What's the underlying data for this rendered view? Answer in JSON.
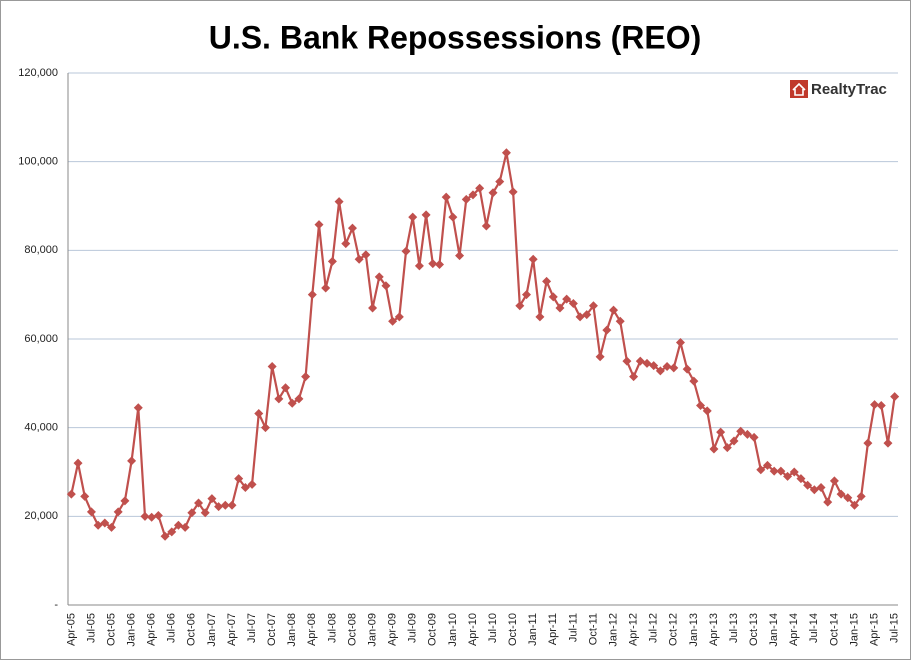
{
  "chart_data": {
    "type": "line",
    "title": "U.S. Bank Repossessions (REO)",
    "logo": "RealtyTrac",
    "categories": [
      "Apr-05",
      null,
      null,
      "Jul-05",
      null,
      null,
      "Oct-05",
      null,
      null,
      "Jan-06",
      null,
      null,
      "Apr-06",
      null,
      null,
      "Jul-06",
      null,
      null,
      "Oct-06",
      null,
      null,
      "Jan-07",
      null,
      null,
      "Apr-07",
      null,
      null,
      "Jul-07",
      null,
      null,
      "Oct-07",
      null,
      null,
      "Jan-08",
      null,
      null,
      "Apr-08",
      null,
      null,
      "Jul-08",
      null,
      null,
      "Oct-08",
      null,
      null,
      "Jan-09",
      null,
      null,
      "Apr-09",
      null,
      null,
      "Jul-09",
      null,
      null,
      "Oct-09",
      null,
      null,
      "Jan-10",
      null,
      null,
      "Apr-10",
      null,
      null,
      "Jul-10",
      null,
      null,
      "Oct-10",
      null,
      null,
      "Jan-11",
      null,
      null,
      "Apr-11",
      null,
      null,
      "Jul-11",
      null,
      null,
      "Oct-11",
      null,
      null,
      "Jan-12",
      null,
      null,
      "Apr-12",
      null,
      null,
      "Jul-12",
      null,
      null,
      "Oct-12",
      null,
      null,
      "Jan-13",
      null,
      null,
      "Apr-13",
      null,
      null,
      "Jul-13",
      null,
      null,
      "Oct-13",
      null,
      null,
      "Jan-14",
      null,
      null,
      "Apr-14",
      null,
      null,
      "Jul-14",
      null,
      null,
      "Oct-14",
      null,
      null,
      "Jan-15",
      null,
      null,
      "Apr-15",
      null,
      null,
      "Jul-15"
    ],
    "series": [
      {
        "name": "REO",
        "color": "#c0504d",
        "values": [
          25000,
          32000,
          24500,
          21000,
          18000,
          18500,
          17500,
          21000,
          23500,
          32500,
          44500,
          20000,
          19800,
          20200,
          15500,
          16500,
          18000,
          17500,
          20800,
          23000,
          20800,
          24000,
          22200,
          22500,
          22500,
          28500,
          26500,
          27200,
          43200,
          40000,
          53800,
          46500,
          49000,
          45500,
          46500,
          51500,
          70000,
          85800,
          71500,
          77500,
          91000,
          81500,
          85000,
          78000,
          79000,
          67000,
          74000,
          72000,
          64000,
          65000,
          79800,
          87500,
          76500,
          88000,
          77000,
          76800,
          92000,
          87500,
          78800,
          91500,
          92500,
          94000,
          85500,
          93000,
          95500,
          102000,
          93200,
          67500,
          70000,
          78000,
          65000,
          73000,
          69500,
          67000,
          69000,
          68000,
          65000,
          65500,
          67500,
          56000,
          62000,
          66500,
          64000,
          55000,
          51500,
          55000,
          54500,
          54000,
          52800,
          53800,
          53500,
          59200,
          53200,
          50500,
          45000,
          43800,
          35200,
          39000,
          35500,
          37000,
          39200,
          38500,
          37800,
          30500,
          31500,
          30200,
          30200,
          29000,
          30000,
          28500,
          27000,
          26000,
          26500,
          23200,
          28000,
          25000,
          24200,
          22500,
          24500,
          36500,
          45200,
          45000,
          36500,
          47000
        ]
      }
    ],
    "ylim": [
      0,
      120000
    ],
    "yticks": [
      {
        "value": 0,
        "label": "-"
      },
      {
        "value": 20000,
        "label": "20,000"
      },
      {
        "value": 40000,
        "label": "40,000"
      },
      {
        "value": 60000,
        "label": "60,000"
      },
      {
        "value": 80000,
        "label": "80,000"
      },
      {
        "value": 100000,
        "label": "100,000"
      },
      {
        "value": 120000,
        "label": "120,000"
      }
    ],
    "grid": true
  }
}
